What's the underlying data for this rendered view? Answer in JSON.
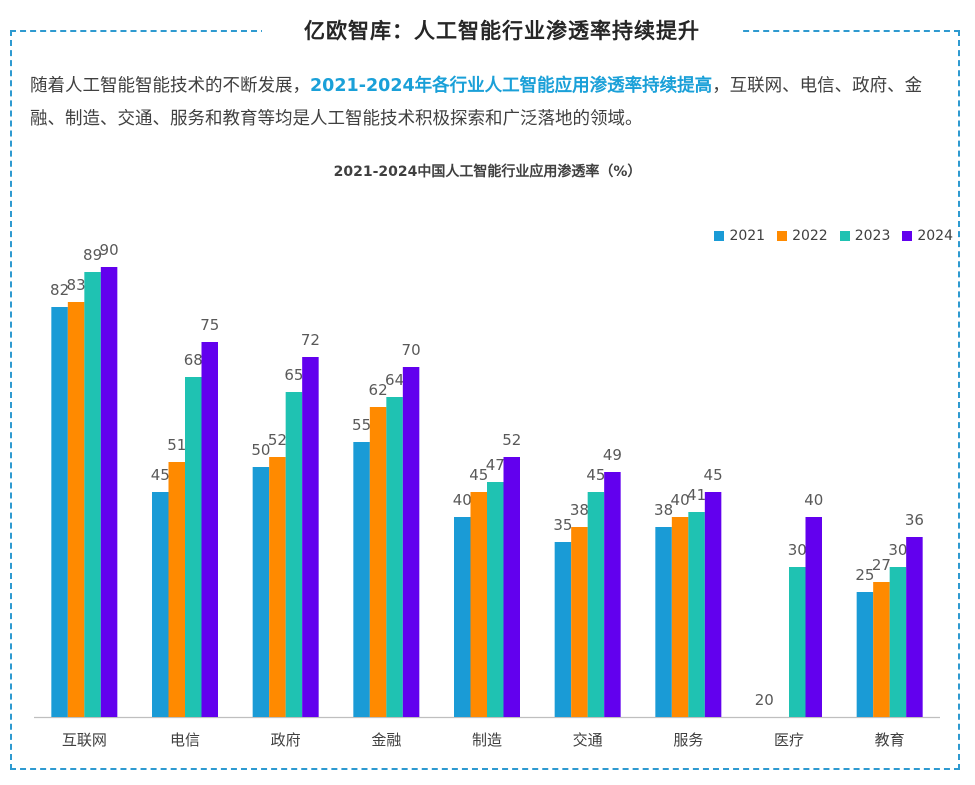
{
  "header": {
    "title": "亿欧智库：人工智能行业渗透率持续提升"
  },
  "intro": {
    "part1": "随着人工智能智能技术的不断发展，",
    "highlight": "2021-2024年各行业人工智能应用渗透率持续提高",
    "part2": "，互联网、电信、政府、金融、制造、交通、服务和教育等均是人工智能技术积极探索和广泛落地的领域。"
  },
  "colors": {
    "2021": "#1a9bd6",
    "2022": "#ff8a00",
    "2023": "#1fc2b2",
    "2024": "#6200ee",
    "accent": "#1aa0d8",
    "frame": "#2e9ad0"
  },
  "chart_data": {
    "type": "bar",
    "title": "2021-2024中国人工智能行业应用渗透率（%）",
    "categories": [
      "互联网",
      "电信",
      "政府",
      "金融",
      "制造",
      "交通",
      "服务",
      "医疗",
      "教育"
    ],
    "series": [
      {
        "name": "2021",
        "values": [
          82,
          45,
          50,
          55,
          40,
          35,
          38,
          null,
          25
        ]
      },
      {
        "name": "2022",
        "values": [
          83,
          51,
          52,
          62,
          45,
          38,
          40,
          null,
          27
        ]
      },
      {
        "name": "2023",
        "values": [
          89,
          68,
          65,
          64,
          47,
          45,
          41,
          30,
          30
        ]
      },
      {
        "name": "2024",
        "values": [
          90,
          75,
          72,
          70,
          52,
          49,
          45,
          40,
          36
        ]
      }
    ],
    "extra_labels": [
      {
        "category": "医疗",
        "series": "2021",
        "text": "20"
      }
    ],
    "legend_position": "top-right",
    "ylim": [
      0,
      100
    ],
    "grid": false
  }
}
